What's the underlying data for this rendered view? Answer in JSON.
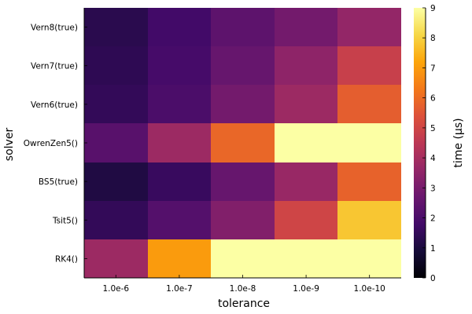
{
  "chart_data": {
    "type": "heatmap",
    "title": "",
    "xlabel": "tolerance",
    "ylabel": "solver",
    "colorbar_label": "time (µs)",
    "x_categories": [
      "1.0e-6",
      "1.0e-7",
      "1.0e-8",
      "1.0e-9",
      "1.0e-10"
    ],
    "y_categories": [
      "Vern8(true)",
      "Vern7(true)",
      "Vern6(true)",
      "OwrenZen5()",
      "BS5(true)",
      "Tsit5()",
      "RK4()"
    ],
    "values": [
      [
        1.3,
        1.8,
        2.4,
        2.9,
        3.6
      ],
      [
        1.4,
        1.9,
        2.6,
        3.5,
        4.8
      ],
      [
        1.5,
        2.0,
        2.9,
        3.8,
        5.7
      ],
      [
        2.3,
        3.8,
        5.9,
        9.0,
        9.0
      ],
      [
        1.1,
        1.6,
        2.6,
        3.7,
        5.8
      ],
      [
        1.5,
        2.2,
        3.2,
        5.0,
        7.8
      ],
      [
        3.8,
        7.0,
        9.0,
        9.0,
        9.0
      ]
    ],
    "clim": [
      0,
      9
    ],
    "colorbar_ticks": [
      "0",
      "1",
      "2",
      "3",
      "4",
      "5",
      "6",
      "7",
      "8",
      "9"
    ],
    "colormap": "inferno",
    "grid": false,
    "colors": {
      "axis": "#000000",
      "background": "#ffffff"
    }
  }
}
